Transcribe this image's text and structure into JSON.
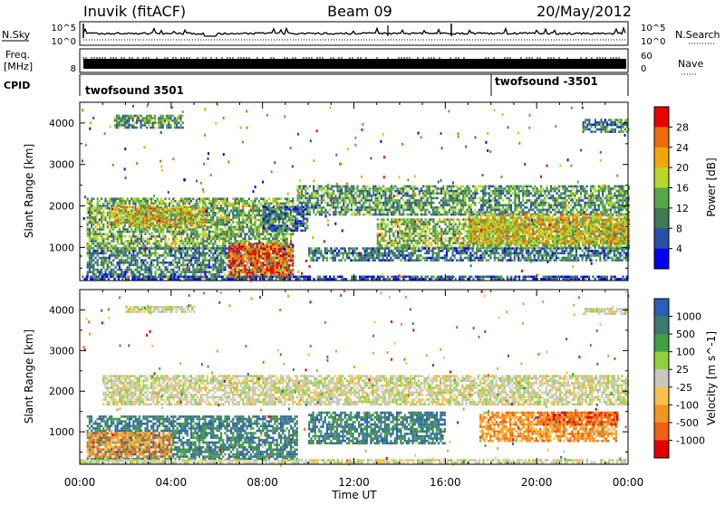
{
  "header": {
    "station": "Inuvik (fitACF)",
    "beam": "Beam 09",
    "date": "20/May/2012"
  },
  "top_panels": {
    "nsky_label": "N.Sky",
    "nsky_ticks": [
      "10^5",
      "10^0"
    ],
    "nsearch_label": "N.Search",
    "nsearch_ticks": [
      "10^5",
      "10^0"
    ],
    "freq_label": "Freq.",
    "freq_unit": "[MHz]",
    "freq_ticks": [
      "8"
    ],
    "nave_label": "Nave",
    "nave_ticks": [
      "60",
      "0"
    ],
    "cpid_label": "CPID",
    "cpid_segments": [
      {
        "name": "twofsound 3501",
        "start_hour": 0
      },
      {
        "name": "twofsound -3501",
        "start_hour": 18
      }
    ]
  },
  "chart_data": [
    {
      "type": "heatmap",
      "quantity": "Power",
      "xlabel": "Time UT",
      "ylabel": "Slant Range [km]",
      "x_ticks": [
        "00:00",
        "04:00",
        "08:00",
        "12:00",
        "16:00",
        "20:00",
        "00:00"
      ],
      "xlim_hours": [
        0,
        24
      ],
      "ylim": [
        200,
        4500
      ],
      "y_ticks": [
        1000,
        2000,
        3000,
        4000
      ],
      "colorbar": {
        "label": "Power [dB]",
        "ticks": [
          "28",
          "24",
          "20",
          "16",
          "12",
          "8",
          "4"
        ],
        "range": [
          0,
          32
        ],
        "colors": [
          "#0000ee",
          "#2a4ea8",
          "#3d7a55",
          "#55a845",
          "#b5d82a",
          "#f3a50a",
          "#ef6a0a",
          "#e80000"
        ]
      },
      "regions": [
        {
          "t": [
            0.3,
            9.3
          ],
          "r": [
            1000,
            2200
          ],
          "v": 14
        },
        {
          "t": [
            9.5,
            24
          ],
          "r": [
            1800,
            2500
          ],
          "v": 12
        },
        {
          "t": [
            13,
            24
          ],
          "r": [
            1000,
            1700
          ],
          "v": 15
        },
        {
          "t": [
            0.3,
            9.3
          ],
          "r": [
            300,
            1000
          ],
          "v": 10
        },
        {
          "t": [
            6.5,
            9.3
          ],
          "r": [
            250,
            1100
          ],
          "v": 27
        },
        {
          "t": [
            1.5,
            5.5
          ],
          "r": [
            1500,
            2000
          ],
          "v": 20
        },
        {
          "t": [
            17,
            24
          ],
          "r": [
            1100,
            1800
          ],
          "v": 20
        },
        {
          "t": [
            8,
            10
          ],
          "r": [
            1400,
            2000
          ],
          "v": 8
        },
        {
          "t": [
            1.5,
            4.5
          ],
          "r": [
            3900,
            4200
          ],
          "v": 12
        },
        {
          "t": [
            22,
            24
          ],
          "r": [
            3800,
            4100
          ],
          "v": 10
        },
        {
          "t": [
            0,
            24
          ],
          "r": [
            250,
            320
          ],
          "v": 6
        },
        {
          "t": [
            10,
            24
          ],
          "r": [
            700,
            1000
          ],
          "v": 9
        }
      ]
    },
    {
      "type": "heatmap",
      "quantity": "Velocity",
      "xlabel": "Time UT",
      "ylabel": "Slant Range [km]",
      "x_ticks": [
        "00:00",
        "04:00",
        "08:00",
        "12:00",
        "16:00",
        "20:00",
        "00:00"
      ],
      "xlim_hours": [
        0,
        24
      ],
      "ylim": [
        200,
        4500
      ],
      "y_ticks": [
        1000,
        2000,
        3000,
        4000
      ],
      "colorbar": {
        "label": "Velocity [m s^-1]",
        "ticks": [
          "1000",
          "500",
          "100",
          "25",
          "-25",
          "-100",
          "-500",
          "-1000"
        ],
        "colors": [
          "#2a5fb8",
          "#3d7a70",
          "#3fa040",
          "#90d040",
          "#c8c8c0",
          "#f7c050",
          "#f39520",
          "#ef6010",
          "#e00000"
        ]
      },
      "regions": [
        {
          "t": [
            1,
            24
          ],
          "r": [
            1700,
            2400
          ],
          "c": 4
        },
        {
          "t": [
            0.3,
            9.5
          ],
          "r": [
            300,
            1400
          ],
          "c": 1
        },
        {
          "t": [
            10,
            16
          ],
          "r": [
            700,
            1500
          ],
          "c": 1
        },
        {
          "t": [
            0.3,
            4
          ],
          "r": [
            400,
            1000
          ],
          "c": 6
        },
        {
          "t": [
            17.5,
            23.5
          ],
          "r": [
            800,
            1500
          ],
          "c": 6
        },
        {
          "t": [
            20,
            23.5
          ],
          "r": [
            1200,
            1500
          ],
          "c": 7
        },
        {
          "t": [
            0,
            24
          ],
          "r": [
            220,
            330
          ],
          "c": 4
        },
        {
          "t": [
            2,
            5
          ],
          "r": [
            3950,
            4100
          ],
          "c": 4
        },
        {
          "t": [
            22,
            24
          ],
          "r": [
            3900,
            4050
          ],
          "c": 4
        }
      ]
    }
  ]
}
